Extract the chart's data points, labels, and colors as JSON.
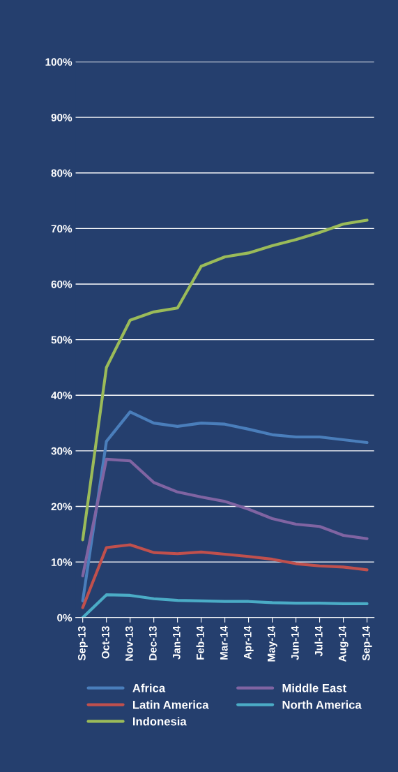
{
  "chart_data": {
    "type": "line",
    "categories": [
      "Sep-13",
      "Oct-13",
      "Nov-13",
      "Dec-13",
      "Jan-14",
      "Feb-14",
      "Mar-14",
      "Apr-14",
      "May-14",
      "Jun-14",
      "Jul-14",
      "Aug-14",
      "Sep-14"
    ],
    "series": [
      {
        "name": "Africa",
        "color": "#4a7ebb",
        "values": [
          3,
          31.7,
          37,
          35,
          34.4,
          35,
          34.8,
          33.9,
          32.9,
          32.5,
          32.5,
          32,
          31.5
        ]
      },
      {
        "name": "Latin America",
        "color": "#c0504d",
        "values": [
          1.8,
          12.6,
          13.1,
          11.7,
          11.5,
          11.8,
          11.4,
          11,
          10.5,
          9.7,
          9.3,
          9.1,
          8.6
        ]
      },
      {
        "name": "Indonesia",
        "color": "#9bbb59",
        "values": [
          14,
          45,
          53.5,
          55,
          55.7,
          63.2,
          64.9,
          65.6,
          66.9,
          68,
          69.3,
          70.8,
          71.5
        ]
      },
      {
        "name": "Middle East",
        "color": "#8064a2",
        "values": [
          7.5,
          28.5,
          28.2,
          24.3,
          22.6,
          21.7,
          20.9,
          19.5,
          17.8,
          16.8,
          16.4,
          14.8,
          14.2
        ]
      },
      {
        "name": "North America",
        "color": "#4bacc6",
        "values": [
          0,
          4.1,
          4,
          3.4,
          3.1,
          3.0,
          2.9,
          2.9,
          2.7,
          2.6,
          2.6,
          2.5,
          2.5
        ]
      }
    ],
    "ylim": [
      0,
      100
    ],
    "yticks": [
      {
        "value": 0,
        "label": "0%"
      },
      {
        "value": 10,
        "label": "10%"
      },
      {
        "value": 20,
        "label": "20%"
      },
      {
        "value": 30,
        "label": "30%"
      },
      {
        "value": 40,
        "label": "40%"
      },
      {
        "value": 50,
        "label": "50%"
      },
      {
        "value": 60,
        "label": "60%"
      },
      {
        "value": 70,
        "label": "70%"
      },
      {
        "value": 80,
        "label": "80%"
      },
      {
        "value": 90,
        "label": "90%"
      },
      {
        "value": 100,
        "label": "100%"
      }
    ],
    "grid": "y",
    "legend": "bottom",
    "marker": "none",
    "line_style": "solid"
  }
}
